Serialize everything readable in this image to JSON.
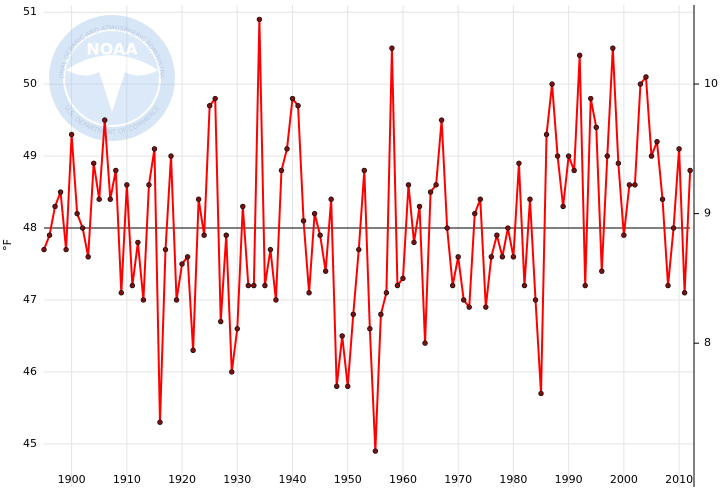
{
  "chart_data": {
    "type": "line",
    "y_axis_label": "°F",
    "x": [
      1895,
      1896,
      1897,
      1898,
      1899,
      1900,
      1901,
      1902,
      1903,
      1904,
      1905,
      1906,
      1907,
      1908,
      1909,
      1910,
      1911,
      1912,
      1913,
      1914,
      1915,
      1916,
      1917,
      1918,
      1919,
      1920,
      1921,
      1922,
      1923,
      1924,
      1925,
      1926,
      1927,
      1928,
      1929,
      1930,
      1931,
      1932,
      1933,
      1934,
      1935,
      1936,
      1937,
      1938,
      1939,
      1940,
      1941,
      1942,
      1943,
      1944,
      1945,
      1946,
      1947,
      1948,
      1949,
      1950,
      1951,
      1952,
      1953,
      1954,
      1955,
      1956,
      1957,
      1958,
      1959,
      1960,
      1961,
      1962,
      1963,
      1964,
      1965,
      1966,
      1967,
      1968,
      1969,
      1970,
      1971,
      1972,
      1973,
      1974,
      1975,
      1976,
      1977,
      1978,
      1979,
      1980,
      1981,
      1982,
      1983,
      1984,
      1985,
      1986,
      1987,
      1988,
      1989,
      1990,
      1991,
      1992,
      1993,
      1994,
      1995,
      1996,
      1997,
      1998,
      1999,
      2000,
      2001,
      2002,
      2003,
      2004,
      2005,
      2006,
      2007,
      2008,
      2009,
      2010,
      2011,
      2012
    ],
    "series": [
      {
        "color": "#ff0000",
        "marker_color": "#7a1010",
        "values": [
          47.7,
          47.9,
          48.3,
          48.5,
          47.7,
          49.3,
          48.2,
          48.0,
          47.6,
          48.9,
          48.4,
          49.5,
          48.4,
          48.8,
          47.1,
          48.6,
          47.2,
          47.8,
          47.0,
          48.6,
          49.1,
          45.3,
          47.7,
          49.0,
          47.0,
          47.5,
          47.6,
          46.3,
          48.4,
          47.9,
          49.7,
          49.8,
          46.7,
          47.9,
          46.0,
          46.6,
          48.3,
          47.2,
          47.2,
          50.9,
          47.2,
          47.7,
          47.0,
          48.8,
          49.1,
          49.8,
          49.7,
          48.1,
          47.1,
          48.2,
          47.9,
          47.4,
          48.4,
          45.8,
          46.5,
          45.8,
          46.8,
          47.7,
          48.8,
          46.6,
          44.9,
          46.8,
          47.1,
          50.5,
          47.2,
          47.3,
          48.6,
          47.8,
          48.3,
          46.4,
          48.5,
          48.6,
          49.5,
          48.0,
          47.2,
          47.6,
          47.0,
          46.9,
          48.2,
          48.4,
          46.9,
          47.6,
          47.9,
          47.6,
          48.0,
          47.6,
          48.9,
          47.2,
          48.4,
          47.0,
          45.7,
          49.3,
          50.0,
          49.0,
          48.3,
          49.0,
          48.8,
          50.4,
          47.2,
          49.8,
          49.4,
          47.4,
          49.0,
          50.5,
          48.9,
          47.9,
          48.6,
          48.6,
          50.0,
          50.1,
          49.0,
          49.2,
          48.4,
          47.2,
          48.0,
          49.1,
          47.1,
          48.8
        ]
      }
    ],
    "reference_line": 48.0,
    "reference_color": "#333333",
    "xlim": [
      1895,
      2012.7
    ],
    "xticks": [
      1900,
      1910,
      1920,
      1930,
      1940,
      1950,
      1960,
      1970,
      1980,
      1990,
      2000,
      2010
    ],
    "ylim": [
      44.4,
      51.1
    ],
    "yticks": [
      45,
      46,
      47,
      48,
      49,
      50,
      51
    ],
    "y2lim": [
      6.89,
      10.61
    ],
    "y2ticks": [
      8,
      9,
      10
    ],
    "grid": true
  },
  "logo": {
    "name": "NOAA",
    "ring_top": "NATIONAL OCEANIC AND ATMOSPHERIC ADMINISTRATION",
    "ring_bottom": "U.S. DEPARTMENT OF COMMERCE"
  }
}
